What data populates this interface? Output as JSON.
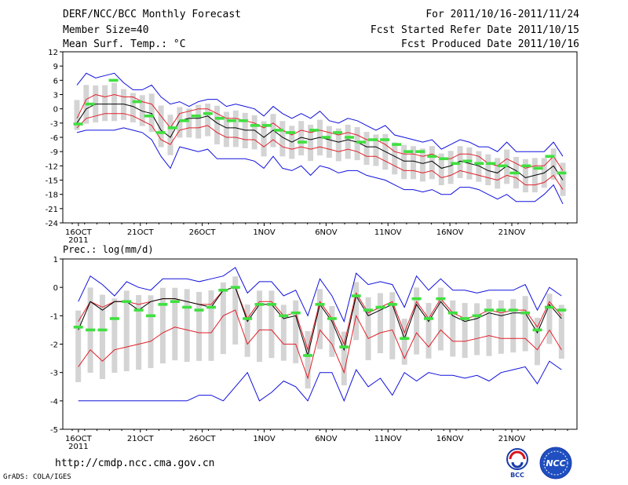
{
  "header": {
    "title": "DERF/NCC/BCC Monthly Forecast",
    "member_size": "Member Size=40",
    "variable": "Mean Surf. Temp.: °C",
    "period": "For 2011/10/16-2011/11/24",
    "start_date": "Fcst Started Refer Date 2011/10/15",
    "produced_date": "Fcst Produced Date 2011/10/16"
  },
  "footer": {
    "url": "http://cmdp.ncc.cma.gov.cn",
    "credit": "GrADS: COLA/IGES",
    "logo_bcc": "BCC",
    "logo_ncc": "NCC"
  },
  "colors": {
    "box": "#d4d4d4",
    "median": "#3fe03f",
    "mean": "#000000",
    "inner": "#e0202a",
    "outer": "#1010dd"
  },
  "chart_data": [
    {
      "type": "line",
      "title": "Mean Surf. Temp.: °C",
      "ylabel": "°C",
      "ylim": [
        -24,
        12
      ],
      "yticks": [
        12,
        9,
        6,
        3,
        0,
        -3,
        -6,
        -9,
        -12,
        -15,
        -18,
        -21,
        -24
      ],
      "xlim": [
        0,
        40
      ],
      "xticks": [
        {
          "x": 0.5,
          "label": "16OCT"
        },
        {
          "x": 5.5,
          "label": "21OCT"
        },
        {
          "x": 10.5,
          "label": "26OCT"
        },
        {
          "x": 15.5,
          "label": "1NOV"
        },
        {
          "x": 20.5,
          "label": "6NOV"
        },
        {
          "x": 25.5,
          "label": "11NOV"
        },
        {
          "x": 30.5,
          "label": "16NOV"
        },
        {
          "x": 35.5,
          "label": "21NOV"
        }
      ],
      "xsub": "2011",
      "series": [
        {
          "name": "mean",
          "values": [
            -3,
            0,
            1,
            1,
            1,
            1,
            0.5,
            -0.5,
            -1,
            -4.5,
            -6,
            -2.5,
            -2,
            -2,
            -1.5,
            -3,
            -4,
            -4,
            -4.5,
            -4.5,
            -6,
            -4.5,
            -6,
            -7,
            -6,
            -6.5,
            -6,
            -6.5,
            -7,
            -6.5,
            -7,
            -8,
            -8,
            -9,
            -10,
            -11,
            -11,
            -11.5,
            -11,
            -12.5,
            -12,
            -11,
            -11.5,
            -12,
            -13,
            -13.5,
            -12,
            -13,
            -14.5,
            -14,
            -13.5,
            -12,
            -15
          ]
        },
        {
          "name": "inner_upper",
          "values": [
            -2,
            2,
            3,
            2.5,
            3,
            2.5,
            2.5,
            1.5,
            1,
            -1.5,
            -4,
            -1,
            -0.5,
            0,
            0,
            -1,
            -2,
            -2,
            -2.5,
            -3,
            -4,
            -3,
            -4.5,
            -5.5,
            -4.5,
            -5,
            -4.5,
            -5,
            -5.5,
            -5,
            -5.5,
            -6.5,
            -6.5,
            -7.5,
            -9,
            -9.5,
            -9.5,
            -10,
            -9.5,
            -10.5,
            -10.5,
            -9.5,
            -9.5,
            -10,
            -11.5,
            -12,
            -10.5,
            -11.5,
            -12.5,
            -12,
            -12,
            -10,
            -13
          ]
        },
        {
          "name": "inner_lower",
          "values": [
            -4,
            -2,
            -1.5,
            -1,
            -1,
            -1,
            -1.5,
            -2.5,
            -3.5,
            -6.5,
            -7.5,
            -4.5,
            -4,
            -4,
            -3.5,
            -5,
            -6,
            -6,
            -6.5,
            -6.5,
            -8,
            -6.5,
            -8,
            -8.5,
            -8,
            -8.5,
            -8,
            -8.5,
            -9,
            -8.5,
            -9,
            -10,
            -10,
            -11,
            -12,
            -13,
            -13,
            -13.5,
            -13,
            -14.5,
            -14,
            -13,
            -13.5,
            -14,
            -14.5,
            -15,
            -14,
            -14.5,
            -16,
            -16,
            -15.5,
            -14,
            -17
          ]
        },
        {
          "name": "outer_upper",
          "values": [
            5,
            7.5,
            6.5,
            7,
            7.5,
            5.5,
            4,
            4,
            5,
            2.5,
            1,
            1.5,
            0.5,
            1.5,
            2,
            2,
            0.5,
            1,
            0.5,
            0,
            -1.5,
            0.5,
            -1,
            -2,
            -1,
            -2,
            -0.5,
            -2.5,
            -3,
            -2,
            -2.5,
            -3.5,
            -4.5,
            -3.5,
            -5.5,
            -6,
            -6.5,
            -7,
            -6.5,
            -8.5,
            -7.5,
            -6.5,
            -7,
            -8,
            -8,
            -9,
            -7,
            -9,
            -9,
            -9,
            -9,
            -7,
            -10
          ]
        },
        {
          "name": "outer_lower",
          "values": [
            -5,
            -4.5,
            -4.5,
            -4.5,
            -4.5,
            -4,
            -4.5,
            -5,
            -6.5,
            -10,
            -12.5,
            -8,
            -8.5,
            -9,
            -8.5,
            -10.5,
            -10.5,
            -10.5,
            -10.5,
            -11,
            -12.5,
            -10,
            -12.5,
            -13,
            -12,
            -14,
            -12,
            -12.5,
            -13.5,
            -13,
            -13,
            -14,
            -14.5,
            -15,
            -16,
            -17,
            -17,
            -17.5,
            -17,
            -18,
            -18,
            -16.5,
            -16.5,
            -17,
            -18,
            -19,
            -18,
            -19.5,
            -19.5,
            -19.5,
            -18,
            -16,
            -20
          ]
        },
        {
          "name": "median_marks",
          "values": [
            -3.2,
            1,
            null,
            6,
            null,
            1.5,
            -1.5,
            -5,
            -4,
            -2.5,
            -1.5,
            -1,
            -2,
            -2.5,
            -2.5,
            -3.5,
            -3.5,
            -4.5,
            -5,
            -7,
            -4.5,
            -6,
            -5,
            -6,
            -7,
            -6.5,
            -6.5,
            -7.5,
            -9,
            -9,
            -10,
            -10.5,
            -11.5,
            -11,
            -11.5,
            -11.5,
            -12,
            -13.5,
            -12,
            -12.5,
            -10,
            -13.5
          ]
        }
      ]
    },
    {
      "type": "line",
      "title": "Prec.: log(mm/d)",
      "ylabel": "log(mm/d)",
      "ylim": [
        -5,
        1
      ],
      "yticks": [
        1,
        0,
        -1,
        -2,
        -3,
        -4,
        -5
      ],
      "xlim": [
        0,
        40
      ],
      "xticks": [
        {
          "x": 0.5,
          "label": "16OCT"
        },
        {
          "x": 5.5,
          "label": "21OCT"
        },
        {
          "x": 10.5,
          "label": "26OCT"
        },
        {
          "x": 15.5,
          "label": "1NOV"
        },
        {
          "x": 20.5,
          "label": "6NOV"
        },
        {
          "x": 25.5,
          "label": "11NOV"
        },
        {
          "x": 30.5,
          "label": "16NOV"
        },
        {
          "x": 35.5,
          "label": "21NOV"
        }
      ],
      "xsub": "2011",
      "series": [
        {
          "name": "mean",
          "values": [
            -1.5,
            -0.5,
            -0.8,
            -0.5,
            -0.5,
            -0.8,
            -0.5,
            -0.4,
            -0.4,
            -0.5,
            -0.6,
            -0.7,
            -0.1,
            0,
            -1.2,
            -0.6,
            -0.6,
            -1.1,
            -1.0,
            -2.4,
            -0.6,
            -1.2,
            -2.2,
            -0.3,
            -1.0,
            -0.8,
            -0.6,
            -1.8,
            -0.6,
            -1.2,
            -0.5,
            -1.0,
            -1.2,
            -1.1,
            -0.9,
            -1.0,
            -0.9,
            -0.9,
            -1.6,
            -0.6,
            -1.1
          ]
        },
        {
          "name": "inner_upper",
          "values": [
            -1.2,
            -0.5,
            -0.7,
            -0.5,
            -0.5,
            -0.6,
            -0.5,
            -0.4,
            -0.4,
            -0.5,
            -0.6,
            -0.6,
            -0.1,
            0,
            -1.1,
            -0.5,
            -0.5,
            -1.0,
            -0.9,
            -2.2,
            -0.5,
            -1.1,
            -2.0,
            -0.2,
            -0.9,
            -0.7,
            -0.5,
            -1.6,
            -0.5,
            -1.1,
            -0.4,
            -0.9,
            -1.1,
            -1.0,
            -0.8,
            -0.9,
            -0.8,
            -0.8,
            -1.4,
            -0.5,
            -1.0
          ]
        },
        {
          "name": "inner_lower",
          "values": [
            -2.8,
            -2.2,
            -2.6,
            -2.2,
            -2.1,
            -2.0,
            -1.9,
            -1.6,
            -1.4,
            -1.5,
            -1.6,
            -1.6,
            -1.0,
            -0.8,
            -2.0,
            -1.5,
            -1.5,
            -2.0,
            -2.0,
            -3.2,
            -1.5,
            -2.0,
            -3.0,
            -1.0,
            -1.8,
            -1.6,
            -1.5,
            -2.5,
            -1.6,
            -2.1,
            -1.5,
            -1.9,
            -1.9,
            -1.8,
            -1.7,
            -1.8,
            -1.8,
            -1.8,
            -2.2,
            -1.5,
            -2.2
          ]
        },
        {
          "name": "outer_upper",
          "values": [
            -0.5,
            0.4,
            0.1,
            -0.3,
            0.2,
            0,
            -0.1,
            0.3,
            0.3,
            0.3,
            0.2,
            0.3,
            0.4,
            0.7,
            -0.2,
            0.2,
            0.2,
            -0.3,
            -0.1,
            -1.0,
            0.3,
            -0.3,
            -1.2,
            0.5,
            0.1,
            0.2,
            0.1,
            -0.7,
            0.4,
            -0.1,
            0.3,
            -0.1,
            -0.1,
            -0.2,
            -0.1,
            -0.1,
            -0.1,
            0.1,
            -0.8,
            0,
            -0.3
          ]
        },
        {
          "name": "outer_lower",
          "values": [
            -4,
            -4,
            -4,
            -4,
            -4,
            -4,
            -4,
            -4,
            -4,
            -4,
            -3.8,
            -3.8,
            -4,
            -3.5,
            -3,
            -4,
            -3.7,
            -3.3,
            -3.5,
            -4,
            -3,
            -3,
            -4,
            -2.9,
            -3.5,
            -3.2,
            -3.8,
            -3,
            -3.3,
            -3,
            -3.1,
            -3.1,
            -3.2,
            -3.1,
            -3.3,
            -3,
            -2.9,
            -2.8,
            -3.4,
            -2.6,
            -2.9
          ]
        },
        {
          "name": "median_marks",
          "values": [
            -1.4,
            -1.5,
            -1.5,
            -1.1,
            -0.5,
            -0.8,
            -1,
            -0.6,
            -0.5,
            -0.7,
            -0.8,
            -0.7,
            -0.1,
            0,
            -1.1,
            -0.6,
            -0.6,
            -1.0,
            -0.9,
            -2.4,
            -0.6,
            -1.1,
            -2.1,
            -0.3,
            -0.8,
            -0.7,
            -0.6,
            -1.8,
            -0.4,
            -1.1,
            -0.4,
            -0.9,
            -1.1,
            -1.0,
            -0.8,
            -0.8,
            -0.8,
            -0.9,
            -1.5,
            -0.7,
            -0.8
          ]
        }
      ]
    }
  ]
}
